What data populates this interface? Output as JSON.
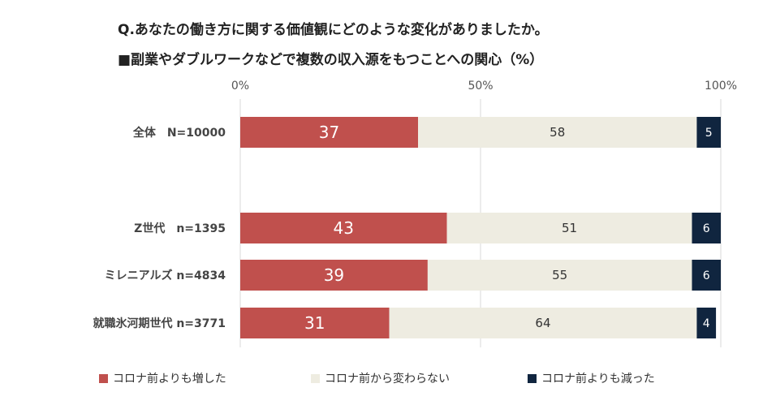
{
  "chart_data": {
    "type": "bar",
    "orientation": "horizontal",
    "stacked": true,
    "title": "Q.あなたの働き方に関する価値観にどのような変化がありましたか。",
    "subtitle": "■副業やダブルワークなどで複数の収入源をもつことへの関心（%）",
    "xlim": [
      0,
      100
    ],
    "x_ticks": [
      "0%",
      "50%",
      "100%"
    ],
    "categories": [
      "全体　N=10000",
      "Z世代　n=1395",
      "ミレニアルズ n=4834",
      "就職氷河期世代 n=3771"
    ],
    "series": [
      {
        "name": "コロナ前よりも増した",
        "color": "#c0504d",
        "values": [
          37,
          43,
          39,
          31
        ]
      },
      {
        "name": "コロナ前から変わらない",
        "color": "#eeece1",
        "values": [
          58,
          51,
          55,
          64
        ]
      },
      {
        "name": "コロナ前よりも減った",
        "color": "#10253f",
        "values": [
          5,
          6,
          6,
          4
        ]
      }
    ],
    "grid": true,
    "legend_position": "bottom"
  }
}
